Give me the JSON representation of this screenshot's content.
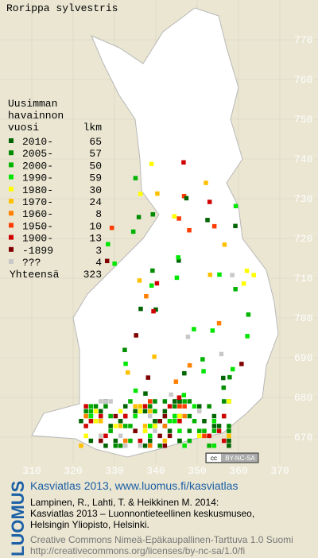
{
  "title": "Rorippa sylvestris",
  "legend": {
    "heading": [
      "Uusimman",
      "havainnon"
    ],
    "col_year": "vuosi",
    "col_count": "lkm",
    "rows": [
      {
        "label": "2010-",
        "count": 65,
        "color": "#006400"
      },
      {
        "label": "2005-",
        "count": 57,
        "color": "#008c00"
      },
      {
        "label": "2000-",
        "count": 50,
        "color": "#00b400"
      },
      {
        "label": "1990-",
        "count": 59,
        "color": "#00e600"
      },
      {
        "label": "1980-",
        "count": 30,
        "color": "#ffff00"
      },
      {
        "label": "1970-",
        "count": 24,
        "color": "#ffc000"
      },
      {
        "label": "1960-",
        "count": 8,
        "color": "#ff8000"
      },
      {
        "label": "1950-",
        "count": 10,
        "color": "#ff3c00"
      },
      {
        "label": "1900-",
        "count": 13,
        "color": "#d00000"
      },
      {
        "label": "-1899",
        "count": 3,
        "color": "#800000"
      },
      {
        "label": "???",
        "count": 4,
        "color": "#c8c8c8"
      }
    ],
    "total_label": "Yhteensä",
    "total": 323
  },
  "x_labels": [
    310,
    320,
    330,
    340,
    350,
    360,
    370
  ],
  "y_labels": [
    770,
    760,
    750,
    740,
    730,
    720,
    710,
    700,
    690,
    680,
    670
  ],
  "badge": {
    "cc": "cc",
    "text": "BY-NC-SA"
  },
  "footer": {
    "logo": "LUOMUS",
    "headline": "Kasviatlas 2013, www.luomus.fi/kasviatlas",
    "citation": [
      "Lampinen, R., Lahti, T. & Heikkinen M. 2014:",
      "Kasviatlas 2013 – Luonnontieteellinen keskusmuseo,",
      "Helsingin Yliopisto, Helsinki."
    ],
    "license": [
      "Creative Commons Nimeä-Epäkaupallinen-Tarttuva 1.0 Suomi",
      "http://creativecommons.org/licenses/by-nc-sa/1.0/fi"
    ]
  }
}
